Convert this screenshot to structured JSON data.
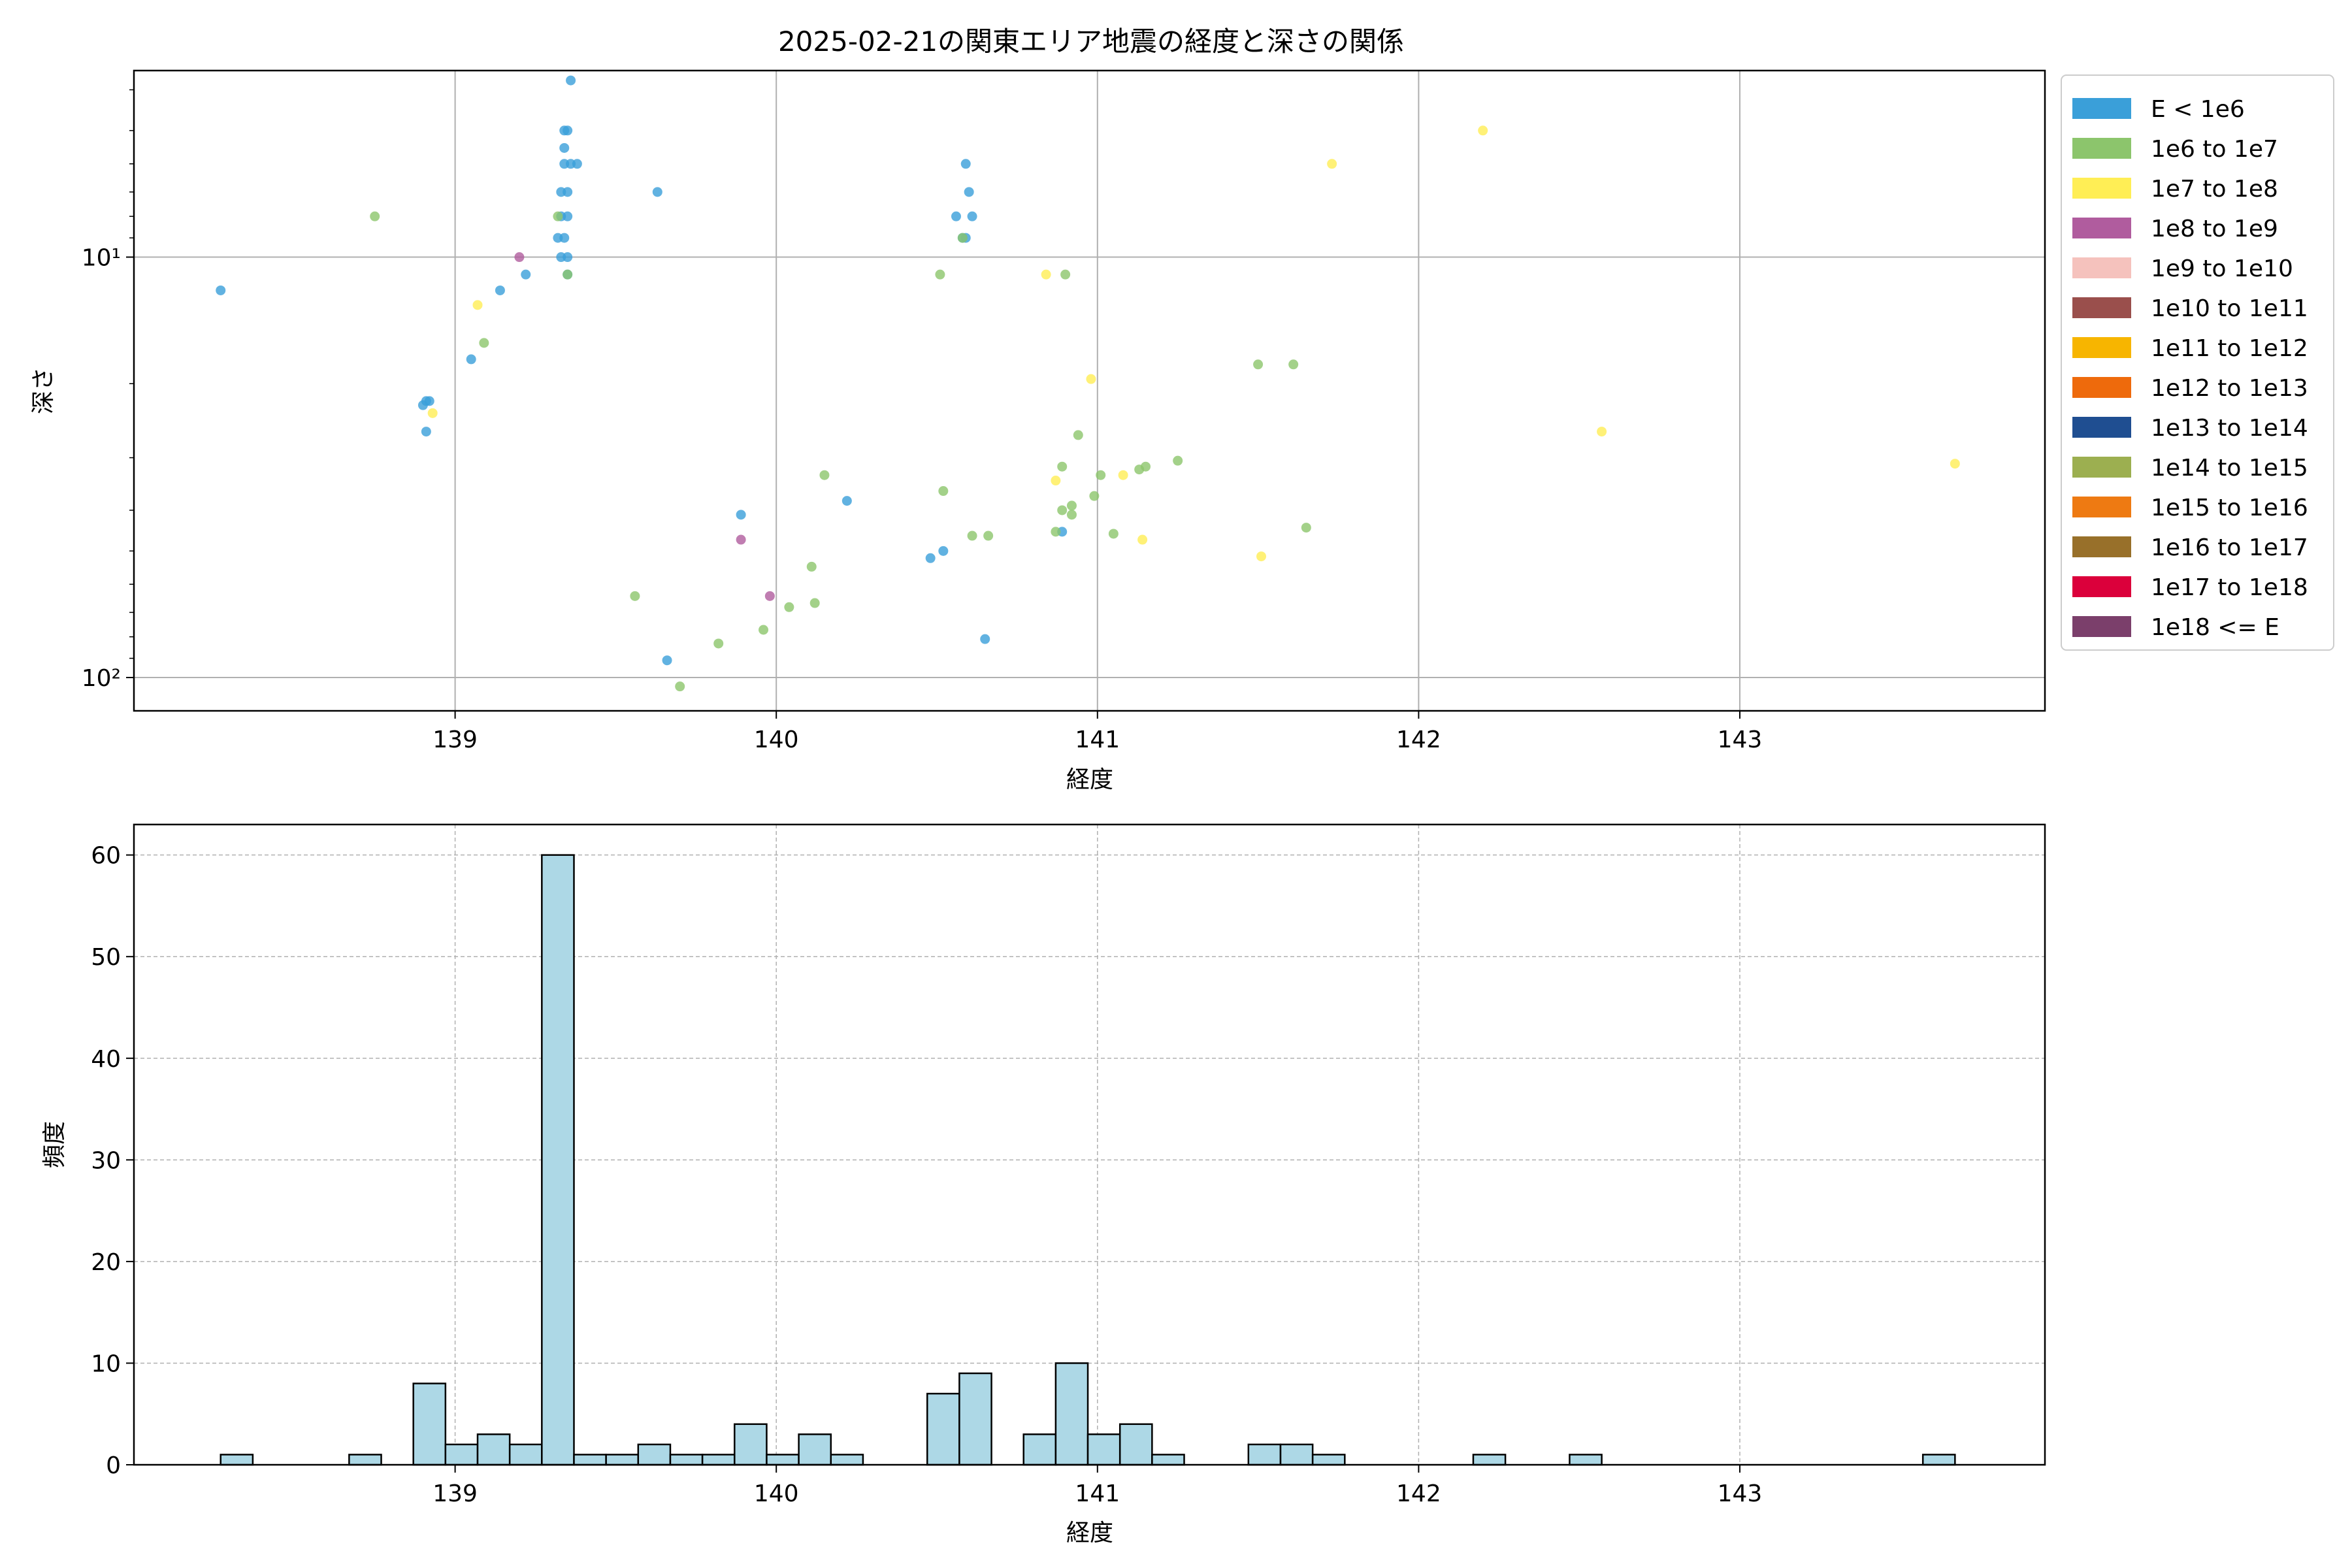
{
  "chart_data": [
    {
      "type": "scatter",
      "title": "2025-02-21の関東エリア地震の経度と深さの関係",
      "xlabel": "経度",
      "ylabel": "深さ",
      "xlim": [
        138.0,
        143.95
      ],
      "ylim": [
        120,
        3.6
      ],
      "y_scale": "log",
      "y_inverted": true,
      "x_ticks": [
        139,
        140,
        141,
        142,
        143
      ],
      "y_ticks": [
        {
          "value": 10,
          "label": "10¹"
        },
        {
          "value": 100,
          "label": "10²"
        }
      ],
      "grid": true,
      "legend_position": "outside-right",
      "legend": [
        {
          "label": "E < 1e6",
          "color": "#3a9fd9"
        },
        {
          "label": "1e6 to 1e7",
          "color": "#8cc56c"
        },
        {
          "label": "1e7 to 1e8",
          "color": "#ffee55"
        },
        {
          "label": "1e8 to 1e9",
          "color": "#b05c9e"
        },
        {
          "label": "1e9 to 1e10",
          "color": "#f5c2bd"
        },
        {
          "label": "1e10 to 1e11",
          "color": "#9a4f4c"
        },
        {
          "label": "1e11 to 1e12",
          "color": "#f7b500"
        },
        {
          "label": "1e12 to 1e13",
          "color": "#ee6a0c"
        },
        {
          "label": "1e13 to 1e14",
          "color": "#1f4e91"
        },
        {
          "label": "1e14 to 1e15",
          "color": "#9caf50"
        },
        {
          "label": "1e15 to 1e16",
          "color": "#ee7a12"
        },
        {
          "label": "1e16 to 1e17",
          "color": "#98702a"
        },
        {
          "label": "1e17 to 1e18",
          "color": "#db003b"
        },
        {
          "label": "1e18 <= E",
          "color": "#7b3f6b"
        }
      ],
      "series": [
        {
          "category": "E < 1e6",
          "points": [
            [
              138.27,
              12
            ],
            [
              138.91,
              22
            ],
            [
              138.91,
              26
            ],
            [
              138.92,
              22
            ],
            [
              138.9,
              22.5
            ],
            [
              139.05,
              17.5
            ],
            [
              139.14,
              12
            ],
            [
              139.22,
              11
            ],
            [
              139.32,
              9
            ],
            [
              139.33,
              8
            ],
            [
              139.35,
              7
            ],
            [
              139.33,
              7
            ],
            [
              139.34,
              6
            ],
            [
              139.34,
              5
            ],
            [
              139.35,
              5
            ],
            [
              139.34,
              5.5
            ],
            [
              139.36,
              6
            ],
            [
              139.38,
              6
            ],
            [
              139.36,
              3.8
            ],
            [
              139.35,
              10
            ],
            [
              139.35,
              11
            ],
            [
              139.33,
              10
            ],
            [
              139.35,
              8
            ],
            [
              139.34,
              9
            ],
            [
              139.63,
              7
            ],
            [
              139.89,
              41
            ],
            [
              139.66,
              91
            ],
            [
              140.22,
              38
            ],
            [
              140.48,
              52
            ],
            [
              140.52,
              50
            ],
            [
              140.56,
              8
            ],
            [
              140.58,
              9
            ],
            [
              140.59,
              9
            ],
            [
              140.59,
              6
            ],
            [
              140.6,
              7
            ],
            [
              140.61,
              8
            ],
            [
              140.65,
              81
            ],
            [
              140.89,
              45
            ]
          ]
        },
        {
          "category": "1e6 to 1e7",
          "points": [
            [
              138.75,
              8
            ],
            [
              139.09,
              16
            ],
            [
              139.32,
              8
            ],
            [
              139.35,
              11
            ],
            [
              139.56,
              64
            ],
            [
              139.7,
              105
            ],
            [
              139.82,
              83
            ],
            [
              139.96,
              77
            ],
            [
              140.04,
              68
            ],
            [
              140.11,
              54.5
            ],
            [
              140.12,
              66.5
            ],
            [
              140.15,
              33
            ],
            [
              140.51,
              11
            ],
            [
              140.52,
              36
            ],
            [
              140.58,
              9
            ],
            [
              140.61,
              46
            ],
            [
              140.66,
              46
            ],
            [
              140.87,
              45
            ],
            [
              140.89,
              40
            ],
            [
              140.89,
              31.5
            ],
            [
              140.92,
              41
            ],
            [
              140.92,
              39
            ],
            [
              140.94,
              26.5
            ],
            [
              140.99,
              37
            ],
            [
              141.01,
              33
            ],
            [
              141.05,
              45.5
            ],
            [
              141.13,
              32
            ],
            [
              141.15,
              31.5
            ],
            [
              141.25,
              30.5
            ],
            [
              141.5,
              18
            ],
            [
              141.61,
              18
            ],
            [
              141.65,
              44
            ],
            [
              140.9,
              11
            ]
          ]
        },
        {
          "category": "1e7 to 1e8",
          "points": [
            [
              138.93,
              23.5
            ],
            [
              139.07,
              13
            ],
            [
              140.84,
              11
            ],
            [
              140.98,
              19.5
            ],
            [
              140.87,
              34
            ],
            [
              141.08,
              33
            ],
            [
              141.14,
              47
            ],
            [
              141.51,
              51.5
            ],
            [
              141.73,
              6
            ],
            [
              142.2,
              5
            ],
            [
              142.57,
              26
            ],
            [
              143.67,
              31
            ]
          ]
        },
        {
          "category": "1e8 to 1e9",
          "points": [
            [
              139.2,
              10
            ],
            [
              139.89,
              47
            ],
            [
              139.98,
              64
            ]
          ]
        }
      ]
    },
    {
      "type": "bar",
      "xlabel": "経度",
      "ylabel": "頻度",
      "xlim": [
        138.0,
        143.95
      ],
      "ylim": [
        0,
        63
      ],
      "x_ticks": [
        139,
        140,
        141,
        142,
        143
      ],
      "y_ticks": [
        0,
        10,
        20,
        30,
        40,
        50,
        60
      ],
      "grid": true,
      "bar_color": "#add8e6",
      "bins": [
        {
          "start": 138.27,
          "end": 138.37,
          "value": 1
        },
        {
          "start": 138.67,
          "end": 138.77,
          "value": 1
        },
        {
          "start": 138.87,
          "end": 138.97,
          "value": 8
        },
        {
          "start": 138.97,
          "end": 139.07,
          "value": 2
        },
        {
          "start": 139.07,
          "end": 139.17,
          "value": 3
        },
        {
          "start": 139.17,
          "end": 139.27,
          "value": 2
        },
        {
          "start": 139.27,
          "end": 139.37,
          "value": 60
        },
        {
          "start": 139.37,
          "end": 139.47,
          "value": 1
        },
        {
          "start": 139.47,
          "end": 139.57,
          "value": 1
        },
        {
          "start": 139.57,
          "end": 139.67,
          "value": 2
        },
        {
          "start": 139.67,
          "end": 139.77,
          "value": 1
        },
        {
          "start": 139.77,
          "end": 139.87,
          "value": 1
        },
        {
          "start": 139.87,
          "end": 139.97,
          "value": 4
        },
        {
          "start": 139.97,
          "end": 140.07,
          "value": 1
        },
        {
          "start": 140.07,
          "end": 140.17,
          "value": 3
        },
        {
          "start": 140.17,
          "end": 140.27,
          "value": 1
        },
        {
          "start": 140.47,
          "end": 140.57,
          "value": 7
        },
        {
          "start": 140.57,
          "end": 140.67,
          "value": 9
        },
        {
          "start": 140.77,
          "end": 140.87,
          "value": 3
        },
        {
          "start": 140.87,
          "end": 140.97,
          "value": 10
        },
        {
          "start": 140.97,
          "end": 141.07,
          "value": 3
        },
        {
          "start": 141.07,
          "end": 141.17,
          "value": 4
        },
        {
          "start": 141.17,
          "end": 141.27,
          "value": 1
        },
        {
          "start": 141.47,
          "end": 141.57,
          "value": 2
        },
        {
          "start": 141.57,
          "end": 141.67,
          "value": 2
        },
        {
          "start": 141.67,
          "end": 141.77,
          "value": 1
        },
        {
          "start": 142.17,
          "end": 142.27,
          "value": 1
        },
        {
          "start": 142.47,
          "end": 142.57,
          "value": 1
        },
        {
          "start": 143.57,
          "end": 143.67,
          "value": 1
        }
      ]
    }
  ]
}
